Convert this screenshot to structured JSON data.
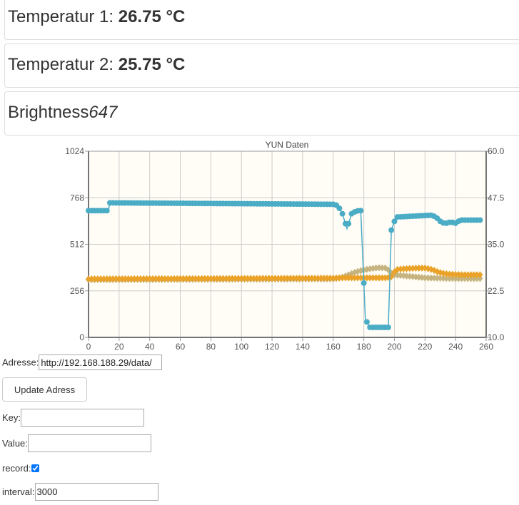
{
  "readings": {
    "temp1_label": "Temperatur 1: ",
    "temp1_value": "26.75 °C",
    "temp2_label": "Temperatur 2: ",
    "temp2_value": "25.75 °C",
    "brightness_label": "Brightness",
    "brightness_value": "647"
  },
  "form": {
    "address_label": "Adresse:",
    "address_value": "http://192.168.188.29/data/",
    "update_button": "Update Adress",
    "key_label": "Key:",
    "key_value": "",
    "value_label": "Value:",
    "value_value": "",
    "record_label": "record:",
    "record_checked": true,
    "interval_label": "interval:",
    "interval_value": "3000"
  },
  "chart_data": {
    "type": "line",
    "title": "YUN Daten",
    "xlabel": "",
    "ylabel": "",
    "xlim": [
      0,
      260
    ],
    "ylim": [
      0,
      1024
    ],
    "y2lim": [
      10,
      60
    ],
    "x_ticks": [
      "0",
      "20",
      "40",
      "60",
      "80",
      "100",
      "120",
      "140",
      "160",
      "180",
      "200",
      "220",
      "240",
      "260"
    ],
    "y_ticks": [
      "0",
      "256",
      "512",
      "768",
      "1024"
    ],
    "y2_ticks": [
      "10.0",
      "22.5",
      "35.0",
      "47.5",
      "60.0"
    ],
    "colors": {
      "brightness": "#4bacc6",
      "temp1": "#eaa228",
      "temp2": "#c5b47f"
    },
    "series": [
      {
        "name": "Brightness",
        "axis": "left",
        "x": [
          0,
          13,
          14,
          160,
          163,
          166,
          169,
          172,
          175,
          178,
          181,
          184,
          187,
          190,
          193,
          196,
          198,
          201,
          225,
          228,
          231,
          234,
          237,
          240,
          243,
          246,
          256
        ],
        "values": [
          697,
          697,
          740,
          732,
          725,
          680,
          598,
          680,
          695,
          697,
          100,
          55,
          55,
          55,
          55,
          55,
          590,
          662,
          672,
          655,
          630,
          628,
          635,
          628,
          645,
          645,
          645
        ]
      },
      {
        "name": "Temperatur 1",
        "axis": "right",
        "x": [
          0,
          160,
          165,
          195,
          198,
          201,
          205,
          210,
          215,
          220,
          223,
          226,
          229,
          232,
          235,
          240,
          245,
          250,
          256
        ],
        "values": [
          25.7,
          25.9,
          26.0,
          26.0,
          26.3,
          28.2,
          28.4,
          28.5,
          28.6,
          28.6,
          28.4,
          28.0,
          27.5,
          27.2,
          27.0,
          26.9,
          26.8,
          26.8,
          26.8
        ]
      },
      {
        "name": "Temperatur 2",
        "axis": "right",
        "x": [
          0,
          160,
          165,
          170,
          175,
          180,
          185,
          190,
          195,
          198,
          200,
          210,
          220,
          230,
          240,
          250,
          256
        ],
        "values": [
          25.5,
          25.7,
          26.0,
          26.8,
          27.6,
          28.1,
          28.5,
          28.7,
          28.6,
          27.2,
          26.8,
          26.4,
          26.0,
          25.9,
          25.8,
          25.8,
          25.8
        ]
      }
    ]
  }
}
